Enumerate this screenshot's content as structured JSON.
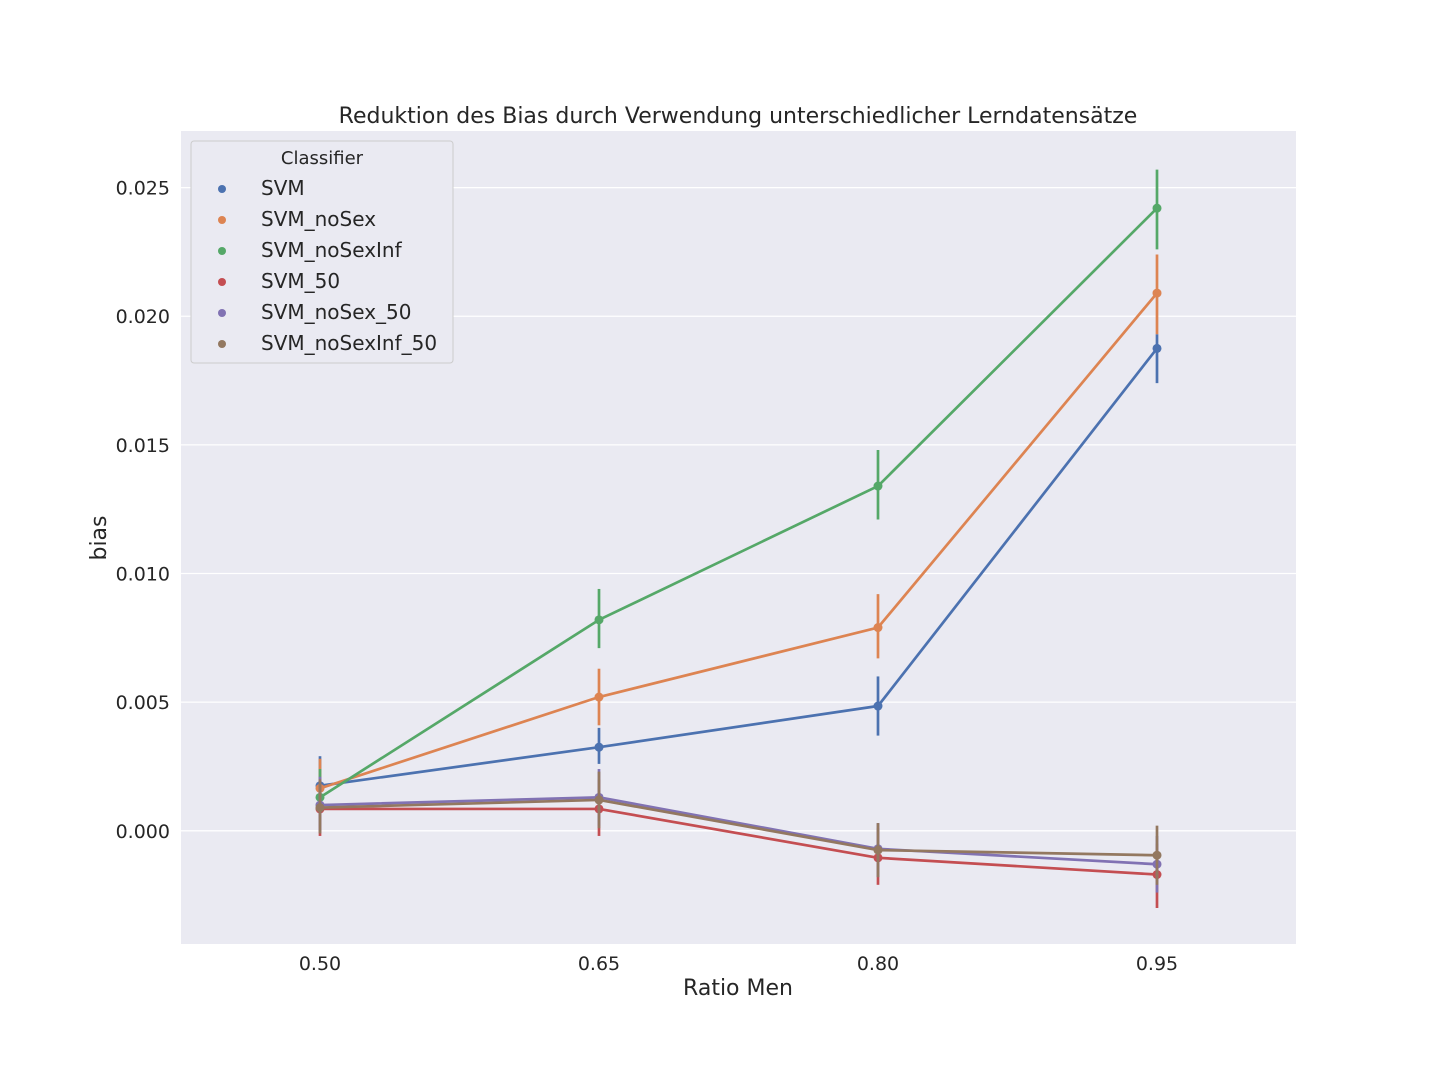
{
  "chart_data": {
    "type": "line",
    "title": "Reduktion des Bias durch Verwendung unterschiedlicher Lerndatensätze",
    "xlabel": "Ratio Men",
    "ylabel": "bias",
    "categories": [
      "0.50",
      "0.65",
      "0.80",
      "0.95"
    ],
    "y_ticks": [
      "0.000",
      "0.005",
      "0.010",
      "0.015",
      "0.020",
      "0.025"
    ],
    "ylim": [
      -0.0044,
      0.0272
    ],
    "grid": true,
    "legend": {
      "title": "Classifier",
      "placement": "top-left"
    },
    "series": [
      {
        "name": "SVM",
        "color": "#4c72b0",
        "values": [
          0.00175,
          0.00325,
          0.00485,
          0.01875
        ],
        "error": [
          [
            0.0007,
            0.0029
          ],
          [
            0.0026,
            0.004
          ],
          [
            0.0037,
            0.006
          ],
          [
            0.0174,
            0.0193
          ]
        ]
      },
      {
        "name": "SVM_noSex",
        "color": "#dd8452",
        "values": [
          0.00165,
          0.0052,
          0.0079,
          0.0209
        ],
        "error": [
          [
            0.0005,
            0.0028
          ],
          [
            0.0041,
            0.0063
          ],
          [
            0.0067,
            0.0092
          ],
          [
            0.0193,
            0.0224
          ]
        ]
      },
      {
        "name": "SVM_noSexInf",
        "color": "#55a868",
        "values": [
          0.0013,
          0.0082,
          0.0134,
          0.0242
        ],
        "error": [
          [
            0.0002,
            0.0024
          ],
          [
            0.0071,
            0.0094
          ],
          [
            0.0121,
            0.0148
          ],
          [
            0.0226,
            0.0257
          ]
        ]
      },
      {
        "name": "SVM_50",
        "color": "#c44e52",
        "values": [
          0.00085,
          0.00085,
          -0.00105,
          -0.0017
        ],
        "error": [
          [
            -0.0002,
            0.002
          ],
          [
            -0.0002,
            0.002
          ],
          [
            -0.0021,
            0.0001
          ],
          [
            -0.003,
            -0.0005
          ]
        ]
      },
      {
        "name": "SVM_noSex_50",
        "color": "#8172b3",
        "values": [
          0.001,
          0.0013,
          -0.0007,
          -0.0013
        ],
        "error": [
          [
            0.0,
            0.0021
          ],
          [
            0.0002,
            0.0024
          ],
          [
            -0.0018,
            0.0003
          ],
          [
            -0.0024,
            -0.0002
          ]
        ]
      },
      {
        "name": "SVM_noSexInf_50",
        "color": "#937860",
        "values": [
          0.0009,
          0.0012,
          -0.00075,
          -0.00095
        ],
        "error": [
          [
            -0.0001,
            0.002
          ],
          [
            0.0001,
            0.0023
          ],
          [
            -0.0018,
            0.0003
          ],
          [
            -0.0021,
            0.0002
          ]
        ]
      }
    ]
  }
}
